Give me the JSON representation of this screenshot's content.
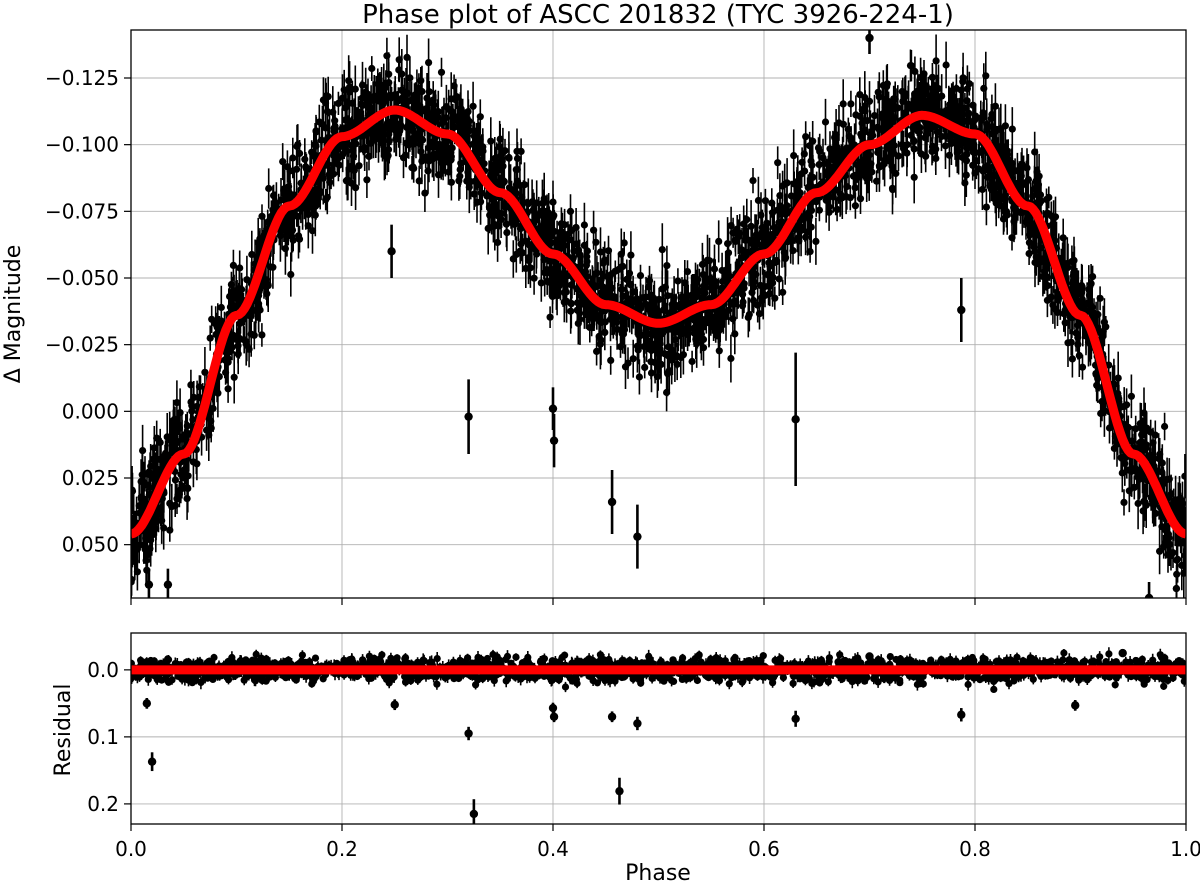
{
  "chart_data": [
    {
      "type": "scatter",
      "panel": "top",
      "title": "Phase plot of ASCC 201832 (TYC 3926-224-1)",
      "xlabel": "",
      "ylabel": "Δ Magnitude",
      "xlim": [
        0.0,
        1.0
      ],
      "ylim": [
        0.07,
        -0.143
      ],
      "y_inverted": true,
      "grid": true,
      "x_ticks": [
        0.0,
        0.2,
        0.4,
        0.6,
        0.8,
        1.0
      ],
      "x_tick_labels_shown": false,
      "y_ticks": [
        -0.125,
        -0.1,
        -0.075,
        -0.05,
        -0.025,
        0.0,
        0.025,
        0.05
      ],
      "y_tick_labels": [
        "−0.125",
        "−0.100",
        "−0.075",
        "−0.050",
        "−0.025",
        "0.000",
        "0.025",
        "0.050"
      ],
      "series": [
        {
          "kind": "data-with-errorbars",
          "color": "#000000",
          "model": "dense band of several thousand black points with vertical error bars following the model curve, scatter about ±0.013 mag",
          "outliers": [
            {
              "x": 0.32,
              "y": 0.002,
              "err": 0.014
            },
            {
              "x": 0.4,
              "y": -0.001,
              "err": 0.008
            },
            {
              "x": 0.401,
              "y": 0.011,
              "err": 0.01
            },
            {
              "x": 0.456,
              "y": 0.034,
              "err": 0.012
            },
            {
              "x": 0.48,
              "y": 0.047,
              "err": 0.012
            },
            {
              "x": 0.63,
              "y": 0.003,
              "err": 0.025
            },
            {
              "x": 0.497,
              "y": -0.025,
              "err": 0.01
            },
            {
              "x": 0.787,
              "y": -0.038,
              "err": 0.012
            },
            {
              "x": 0.7,
              "y": -0.14,
              "err": 0.006
            },
            {
              "x": 0.247,
              "y": -0.06,
              "err": 0.01
            },
            {
              "x": 0.017,
              "y": 0.065,
              "err": 0.006
            },
            {
              "x": 0.035,
              "y": 0.065,
              "err": 0.006
            },
            {
              "x": 0.965,
              "y": 0.07,
              "err": 0.006
            }
          ]
        },
        {
          "kind": "model",
          "color": "#ff0000",
          "x": [
            0.0,
            0.05,
            0.1,
            0.15,
            0.2,
            0.25,
            0.3,
            0.35,
            0.4,
            0.45,
            0.5,
            0.55,
            0.6,
            0.65,
            0.7,
            0.75,
            0.8,
            0.85,
            0.9,
            0.95,
            1.0
          ],
          "y": [
            0.046,
            0.016,
            -0.036,
            -0.077,
            -0.103,
            -0.113,
            -0.104,
            -0.082,
            -0.059,
            -0.04,
            -0.033,
            -0.04,
            -0.059,
            -0.082,
            -0.1,
            -0.111,
            -0.104,
            -0.077,
            -0.036,
            0.016,
            0.046
          ]
        }
      ]
    },
    {
      "type": "scatter",
      "panel": "bottom",
      "title": "",
      "xlabel": "Phase",
      "ylabel": "Residual",
      "xlim": [
        0.0,
        1.0
      ],
      "ylim": [
        0.23,
        -0.055
      ],
      "y_inverted": true,
      "grid": true,
      "x_ticks": [
        0.0,
        0.2,
        0.4,
        0.6,
        0.8,
        1.0
      ],
      "x_tick_labels": [
        "0.0",
        "0.2",
        "0.4",
        "0.6",
        "0.8",
        "1.0"
      ],
      "y_ticks": [
        0.0,
        0.1,
        0.2
      ],
      "y_tick_labels": [
        "0.0",
        "0.1",
        "0.2"
      ],
      "series": [
        {
          "kind": "residuals-with-errorbars",
          "color": "#000000",
          "model": "dense band of black points around 0.0 with scatter about ±0.013",
          "outliers": [
            {
              "x": 0.02,
              "y": 0.137,
              "err": 0.014
            },
            {
              "x": 0.32,
              "y": 0.095,
              "err": 0.01
            },
            {
              "x": 0.325,
              "y": 0.215,
              "err": 0.022
            },
            {
              "x": 0.4,
              "y": 0.057,
              "err": 0.008
            },
            {
              "x": 0.401,
              "y": 0.07,
              "err": 0.008
            },
            {
              "x": 0.456,
              "y": 0.07,
              "err": 0.008
            },
            {
              "x": 0.463,
              "y": 0.181,
              "err": 0.02
            },
            {
              "x": 0.48,
              "y": 0.08,
              "err": 0.01
            },
            {
              "x": 0.63,
              "y": 0.073,
              "err": 0.012
            },
            {
              "x": 0.787,
              "y": 0.067,
              "err": 0.01
            },
            {
              "x": 0.895,
              "y": 0.053,
              "err": 0.008
            },
            {
              "x": 0.015,
              "y": 0.05,
              "err": 0.008
            },
            {
              "x": 0.25,
              "y": 0.052,
              "err": 0.008
            },
            {
              "x": 0.7,
              "y": -0.02,
              "err": 0.006
            },
            {
              "x": 0.94,
              "y": -0.025,
              "err": 0.006
            }
          ]
        },
        {
          "kind": "zero-line",
          "color": "#ff0000",
          "x": [
            0.0,
            1.0
          ],
          "y": [
            0.0,
            0.0
          ]
        }
      ]
    }
  ]
}
